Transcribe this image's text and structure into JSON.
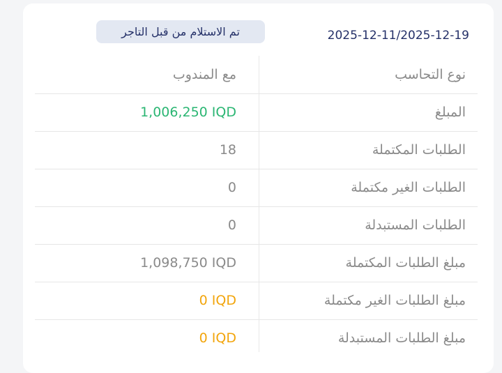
{
  "header": {
    "date_range": "2025-12-11/2025-12-19",
    "status_badge": "تم الاستلام من قبل التاجر"
  },
  "colors": {
    "green": "#2bb673",
    "orange": "#f2a50c",
    "gray": "#8a8a8a"
  },
  "rows": [
    {
      "label": "نوع التحاسب",
      "value": "مع المندوب",
      "color": "#8a8a8a"
    },
    {
      "label": "المبلغ",
      "value": "1,006,250 IQD",
      "color": "#2bb673"
    },
    {
      "label": "الطلبات المكتملة",
      "value": "18",
      "color": "#8a8a8a"
    },
    {
      "label": "الطلبات الغير مكتملة",
      "value": "0",
      "color": "#8a8a8a"
    },
    {
      "label": "الطلبات المستبدلة",
      "value": "0",
      "color": "#8a8a8a"
    },
    {
      "label": "مبلغ الطلبات المكتملة",
      "value": "1,098,750 IQD",
      "color": "#8a8a8a"
    },
    {
      "label": "مبلغ الطلبات الغير مكتملة",
      "value": "0 IQD",
      "color": "#f2a50c"
    },
    {
      "label": "مبلغ الطلبات المستبدلة",
      "value": "0 IQD",
      "color": "#f2a50c"
    }
  ]
}
